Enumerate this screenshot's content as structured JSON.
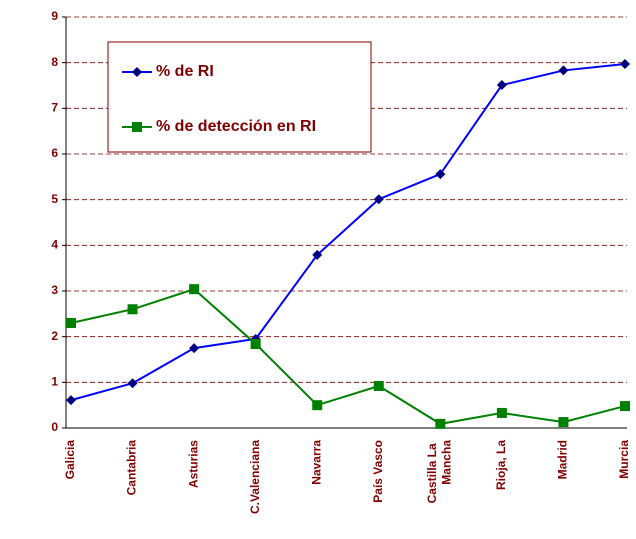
{
  "chart_data": {
    "type": "line",
    "categories": [
      "Galicia",
      "Cantabria",
      "Asturias",
      "C.Valenciana",
      "Navarra",
      "País Vasco",
      "Castilla La Mancha",
      "Rioja, La",
      "Madrid",
      "Murcia"
    ],
    "series": [
      {
        "name": "% de RI",
        "color": "#0000ff",
        "marker_color": "#000080",
        "marker": "diamond",
        "values": [
          0.61,
          0.98,
          1.75,
          1.95,
          3.79,
          5.01,
          5.56,
          7.51,
          7.83,
          7.97
        ]
      },
      {
        "name": "% de detección en RI",
        "color": "#008000",
        "marker_color": "#008000",
        "marker": "square",
        "values": [
          2.3,
          2.6,
          3.04,
          1.84,
          0.5,
          0.92,
          0.09,
          0.33,
          0.13,
          0.48
        ]
      }
    ],
    "ylim": [
      0,
      9
    ],
    "yticks": [
      0,
      1,
      2,
      3,
      4,
      5,
      6,
      7,
      8,
      9
    ],
    "grid": true,
    "legend": "top-left"
  }
}
